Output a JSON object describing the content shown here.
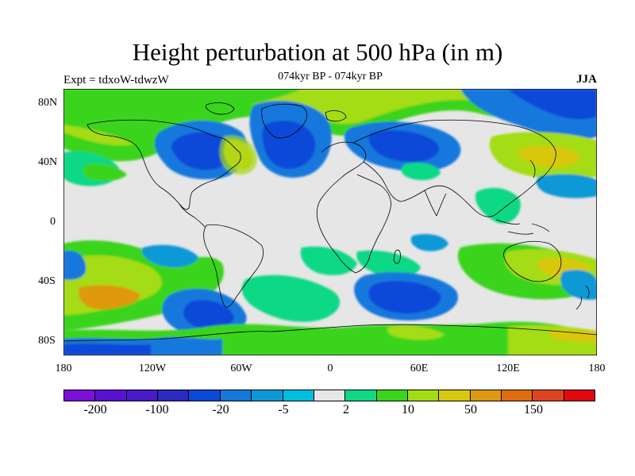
{
  "header": {
    "title": "Height perturbation at 500 hPa (in m)",
    "left": "Expt = tdxoW-tdwzW",
    "center": "074kyr BP - 074kyr BP",
    "right": "JJA"
  },
  "axes": {
    "lat_labels": [
      "80N",
      "40N",
      "0",
      "40S",
      "80S"
    ],
    "lon_labels": [
      "180",
      "120W",
      "60W",
      "0",
      "60E",
      "120E",
      "180"
    ]
  },
  "colorbar": {
    "labels": [
      "-200",
      "-100",
      "-20",
      "-5",
      "2",
      "10",
      "50",
      "150"
    ],
    "colors": [
      "#7a0fd8",
      "#5a10d0",
      "#4a1ac8",
      "#2a2ac0",
      "#0a4ad8",
      "#1478dc",
      "#0c98d6",
      "#00bee0",
      "#e6e6e6",
      "#10d885",
      "#3ad41c",
      "#a4dc14",
      "#d8c810",
      "#e09810",
      "#e06c10",
      "#de4420",
      "#e20810"
    ]
  },
  "map": {
    "background_color": "#e6e6e6",
    "coastline_color": "#000000"
  }
}
